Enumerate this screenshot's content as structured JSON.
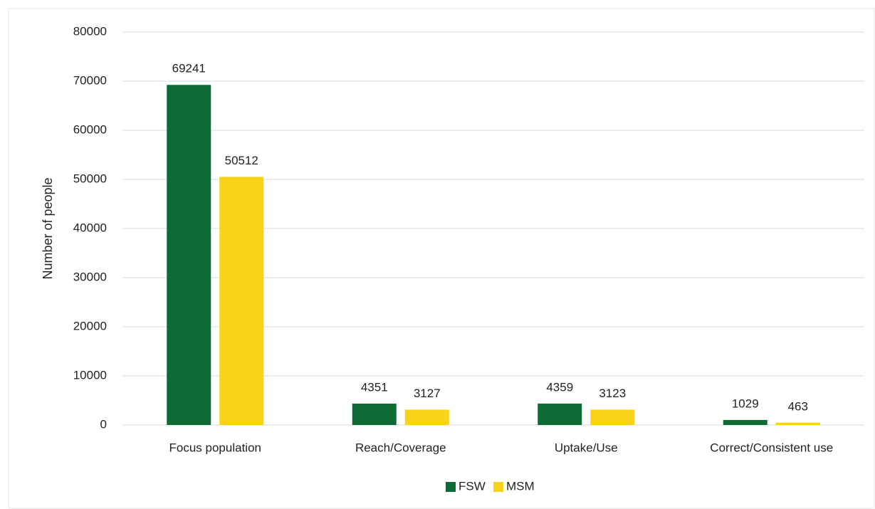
{
  "chart_data": {
    "type": "bar",
    "y_label": "Number of people",
    "categories": [
      "Focus population",
      "Reach/Coverage",
      "Uptake/Use",
      "Correct/Consistent use"
    ],
    "series": [
      {
        "name": "FSW",
        "color": "#0e6b35",
        "values": [
          69241,
          4351,
          4359,
          1029
        ]
      },
      {
        "name": "MSM",
        "color": "#f9d21a",
        "values": [
          50512,
          3127,
          3123,
          463
        ]
      }
    ],
    "ylim": [
      0,
      80000
    ],
    "yticks": [
      0,
      10000,
      20000,
      30000,
      40000,
      50000,
      60000,
      70000,
      80000
    ],
    "grid": true,
    "legend": "bottom"
  }
}
